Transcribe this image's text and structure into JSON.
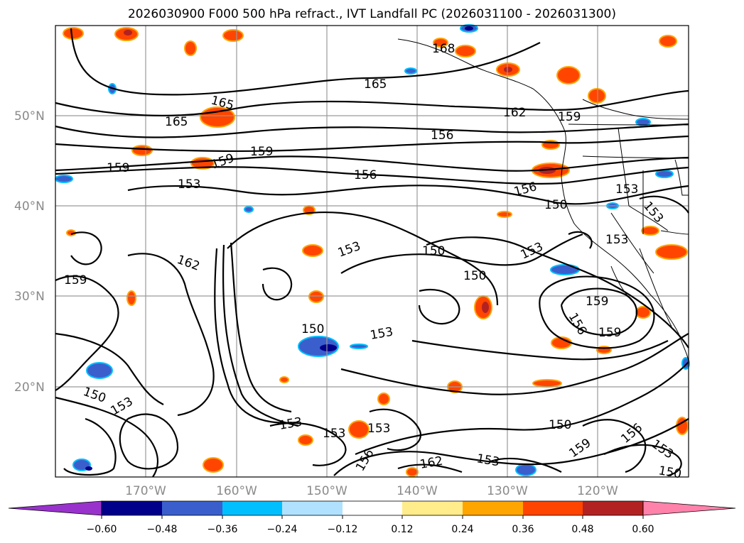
{
  "chart_data": {
    "type": "contour",
    "title": "2026030900 F000 500 hPa refract., IVT Landfall PC (2026031100 - 2026031300)",
    "map_extent": {
      "lon": [
        -180,
        -110
      ],
      "lat": [
        10,
        60
      ]
    },
    "grid": true,
    "lat_ticks": [
      "20°N",
      "30°N",
      "40°N",
      "50°N"
    ],
    "lon_ticks": [
      "170°W",
      "160°W",
      "150°W",
      "140°W",
      "130°W",
      "120°W"
    ],
    "contour_labels": [
      "168",
      "165",
      "165",
      "165",
      "162",
      "159",
      "156",
      "159",
      "159",
      "159",
      "153",
      "156",
      "156",
      "153",
      "153",
      "150",
      "153",
      "153",
      "150",
      "150",
      "153",
      "150",
      "162",
      "159",
      "159",
      "156",
      "159",
      "153",
      "150",
      "153",
      "153",
      "153",
      "153",
      "156",
      "162",
      "153",
      "150",
      "159",
      "156",
      "153",
      "150"
    ],
    "colorbar": {
      "orientation": "horizontal",
      "extend": "both",
      "tick_labels": [
        "−0.60",
        "−0.48",
        "−0.36",
        "−0.24",
        "−0.12",
        "0.12",
        "0.24",
        "0.36",
        "0.48",
        "0.60"
      ],
      "colors": [
        "#9932cc",
        "#00008b",
        "#3a5fcd",
        "#00bfff",
        "#b0e2ff",
        "#ffffff",
        "#ffec8b",
        "#ffa500",
        "#ff4500",
        "#b22222",
        "#ff82ab"
      ]
    }
  }
}
